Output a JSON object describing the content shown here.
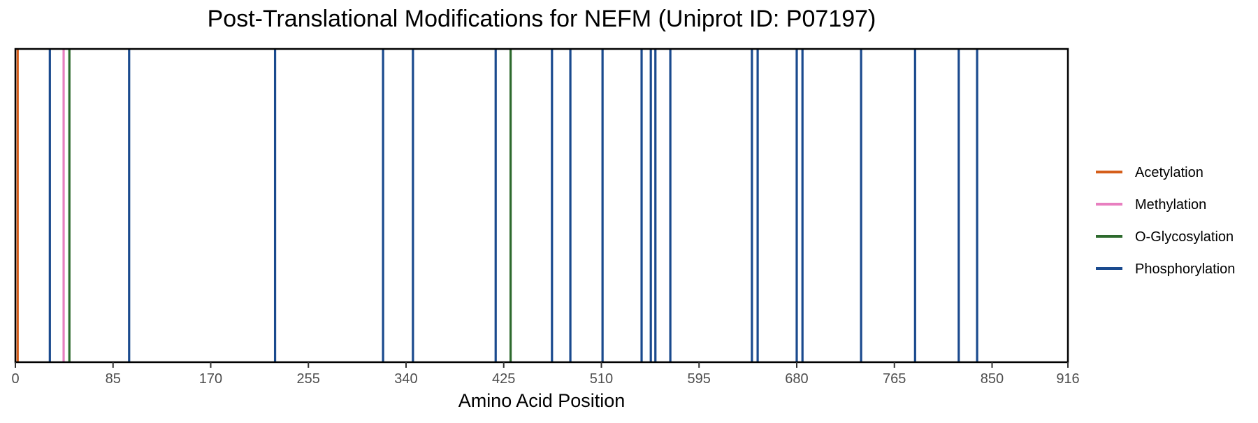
{
  "chart_data": {
    "type": "line",
    "title": "Post-Translational Modifications for NEFM (Uniprot ID: P07197)",
    "xlabel": "Amino Acid Position",
    "ylabel": "",
    "xlim": [
      0,
      916
    ],
    "x_ticks": [
      0,
      85,
      170,
      255,
      340,
      425,
      510,
      595,
      680,
      765,
      850,
      916
    ],
    "grid": false,
    "legend_position": "right",
    "series": [
      {
        "name": "Acetylation",
        "color": "#D55E1A",
        "positions": [
          2
        ]
      },
      {
        "name": "Methylation",
        "color": "#E87FC0",
        "positions": [
          42
        ]
      },
      {
        "name": "O-Glycosylation",
        "color": "#2D6A2D",
        "positions": [
          47,
          431
        ]
      },
      {
        "name": "Phosphorylation",
        "color": "#1A4A8E",
        "positions": [
          30,
          99,
          226,
          320,
          346,
          418,
          467,
          483,
          511,
          545,
          553,
          557,
          570,
          641,
          646,
          680,
          685,
          736,
          783,
          821,
          837
        ]
      }
    ]
  }
}
